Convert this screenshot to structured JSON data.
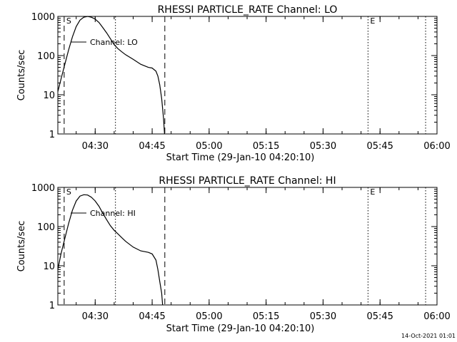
{
  "timestamp": "14-Oct-2021 01:01",
  "chart_data": [
    {
      "type": "line",
      "title": "RHESSI PARTICLE_RATE Channel: LO",
      "xlabel": "Start Time (29-Jan-10 04:20:10)",
      "ylabel": "Counts/sec",
      "yscale": "log",
      "ylim": [
        1,
        1000
      ],
      "xlim": [
        "04:20:10",
        "06:00:00"
      ],
      "x_ticks": [
        "04:30",
        "04:45",
        "05:00",
        "05:15",
        "05:30",
        "05:45",
        "06:00"
      ],
      "y_ticks": [
        "1",
        "10",
        "100",
        "1000"
      ],
      "legend": "Channel: LO",
      "markers": [
        {
          "label": "S",
          "time": "04:21:50",
          "style": "dashed"
        },
        {
          "label": "",
          "time": "04:35:20",
          "style": "dotted"
        },
        {
          "label": "",
          "time": "04:48:20",
          "style": "dashed"
        },
        {
          "label": "E",
          "time": "05:41:50",
          "style": "dotted"
        },
        {
          "label": "",
          "time": "05:57:00",
          "style": "dotted"
        }
      ],
      "series": [
        {
          "x": [
            "04:20:10",
            "04:21:00",
            "04:22:00",
            "04:23:00",
            "04:24:00",
            "04:25:00",
            "04:26:00",
            "04:27:00",
            "04:28:00",
            "04:29:00",
            "04:30:00",
            "04:31:00",
            "04:32:00",
            "04:33:00",
            "04:34:00",
            "04:35:00",
            "04:36:00",
            "04:37:00",
            "04:38:00",
            "04:40:00",
            "04:42:00",
            "04:44:00",
            "04:45:00",
            "04:46:00",
            "04:46:30",
            "04:47:00",
            "04:47:30",
            "04:48:00",
            "04:48:15"
          ],
          "values": [
            12,
            25,
            60,
            140,
            300,
            550,
            800,
            950,
            1000,
            950,
            850,
            700,
            520,
            380,
            270,
            190,
            150,
            125,
            105,
            80,
            60,
            50,
            48,
            40,
            30,
            18,
            8,
            2.5,
            1
          ]
        }
      ]
    },
    {
      "type": "line",
      "title": "RHESSI PARTICLE_RATE Channel: HI",
      "xlabel": "Start Time (29-Jan-10 04:20:10)",
      "ylabel": "Counts/sec",
      "yscale": "log",
      "ylim": [
        1,
        1000
      ],
      "xlim": [
        "04:20:10",
        "06:00:00"
      ],
      "x_ticks": [
        "04:30",
        "04:45",
        "05:00",
        "05:15",
        "05:30",
        "05:45",
        "06:00"
      ],
      "y_ticks": [
        "1",
        "10",
        "100",
        "1000"
      ],
      "legend": "Channel: HI",
      "markers": [
        {
          "label": "S",
          "time": "04:21:50",
          "style": "dashed"
        },
        {
          "label": "",
          "time": "04:35:20",
          "style": "dotted"
        },
        {
          "label": "",
          "time": "04:48:20",
          "style": "dashed"
        },
        {
          "label": "E",
          "time": "05:41:50",
          "style": "dotted"
        },
        {
          "label": "",
          "time": "05:57:00",
          "style": "dotted"
        }
      ],
      "series": [
        {
          "x": [
            "04:20:10",
            "04:21:00",
            "04:22:00",
            "04:23:00",
            "04:24:00",
            "04:25:00",
            "04:26:00",
            "04:27:00",
            "04:28:00",
            "04:29:00",
            "04:30:00",
            "04:31:00",
            "04:32:00",
            "04:33:00",
            "04:34:00",
            "04:35:00",
            "04:36:00",
            "04:37:00",
            "04:38:00",
            "04:40:00",
            "04:42:00",
            "04:44:00",
            "04:45:00",
            "04:46:00",
            "04:46:30",
            "04:47:00",
            "04:47:30",
            "04:47:45"
          ],
          "values": [
            8,
            20,
            50,
            120,
            260,
            450,
            600,
            650,
            640,
            560,
            450,
            330,
            220,
            150,
            105,
            80,
            65,
            52,
            42,
            30,
            24,
            22,
            20,
            14,
            8,
            4,
            2,
            1
          ]
        }
      ]
    }
  ]
}
